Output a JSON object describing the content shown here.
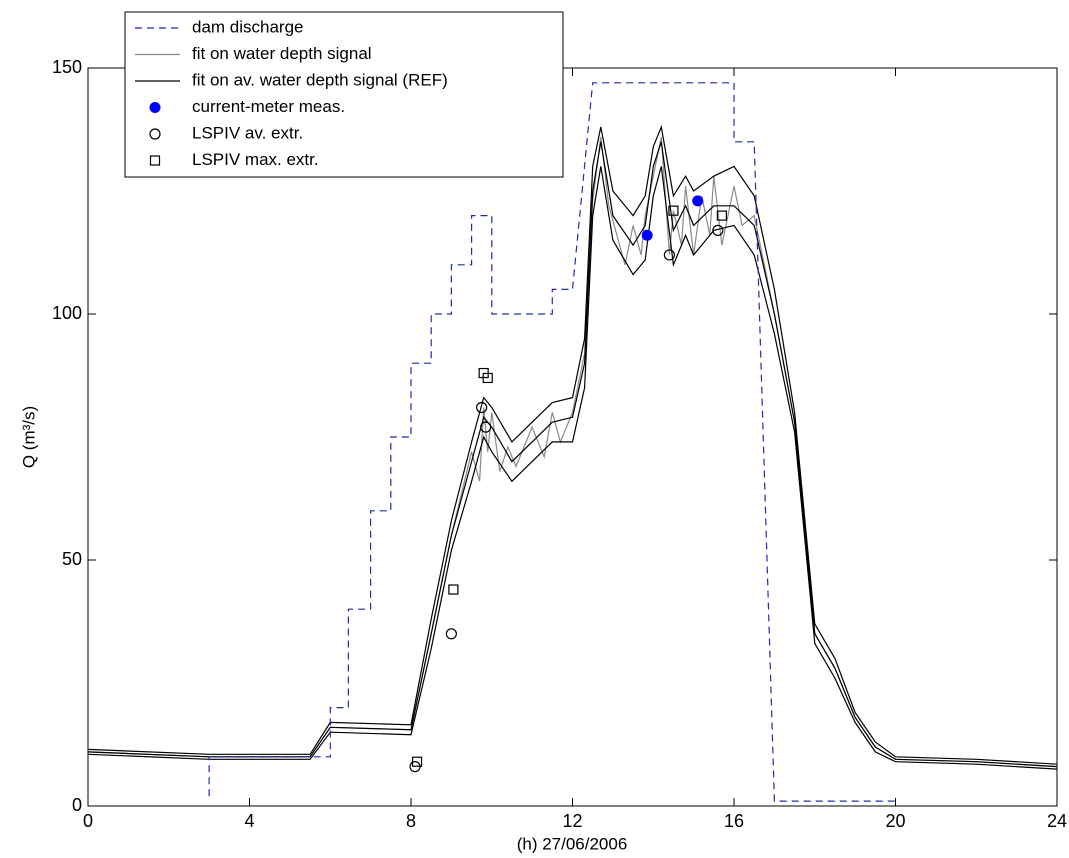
{
  "chart_data": {
    "type": "line",
    "x_label": "(h)  27/06/2006",
    "y_label": "Q (m³/s)",
    "xlim": [
      0,
      24
    ],
    "xticks": [
      0,
      4,
      8,
      12,
      16,
      20,
      24
    ],
    "ylim": [
      0,
      150
    ],
    "yticks": [
      0,
      50,
      100,
      150
    ],
    "legend": "upper left",
    "series": [
      {
        "name": "dam discharge",
        "color": "#1f2fa8",
        "style": "dashed",
        "x": [
          3,
          3,
          6,
          6,
          6.45,
          6.45,
          7,
          7,
          7.5,
          7.5,
          8,
          8,
          8.5,
          8.5,
          9,
          9,
          9.5,
          9.5,
          10,
          10,
          11.5,
          11.5,
          12,
          12.5,
          16,
          16,
          16.5,
          17,
          20
        ],
        "values": [
          2,
          10,
          10,
          20,
          20,
          40,
          40,
          60,
          60,
          75,
          75,
          90,
          90,
          100,
          100,
          110,
          110,
          120,
          120,
          100,
          100,
          105,
          105,
          147,
          147,
          135,
          135,
          1,
          1
        ]
      },
      {
        "name": "fit on water depth signal",
        "color": "#8a8a8a",
        "style": "solid",
        "x": [
          0,
          3,
          5.5,
          6,
          8,
          8.5,
          9,
          9.5,
          9.7,
          9.8,
          9.9,
          10,
          10.2,
          10.4,
          10.6,
          11,
          11.3,
          11.5,
          11.7,
          12,
          12.3,
          12.5,
          12.7,
          12.9,
          13,
          13.3,
          13.5,
          13.7,
          13.8,
          14,
          14.2,
          14.4,
          14.5,
          14.7,
          14.8,
          15,
          15.2,
          15.4,
          15.5,
          15.7,
          16,
          16.2,
          16.5,
          17,
          17.5,
          18,
          18.5,
          19,
          19.5,
          20,
          22,
          24
        ],
        "values": [
          11,
          10,
          10,
          16,
          15.5,
          35,
          55,
          72,
          66,
          81,
          72,
          80,
          68,
          73,
          69,
          77,
          71,
          80,
          74,
          80,
          92,
          123,
          136,
          122,
          119,
          110,
          118,
          112,
          120,
          128,
          136,
          112,
          121,
          114,
          126,
          112,
          124,
          116,
          128,
          114,
          126,
          118,
          120,
          100,
          78,
          35,
          28,
          18,
          12,
          9.5,
          9,
          8
        ]
      },
      {
        "name": "fit on av. water depth signal (REF)",
        "color": "#000000",
        "style": "solid",
        "x": [
          0,
          3,
          5.5,
          6,
          8,
          8.5,
          9,
          9.5,
          9.8,
          10,
          10.5,
          11,
          11.5,
          12,
          12.3,
          12.5,
          12.7,
          13,
          13.5,
          13.8,
          14,
          14.2,
          14.5,
          14.8,
          15,
          15.5,
          16,
          16.5,
          17,
          17.5,
          18,
          18.5,
          19,
          19.5,
          20,
          22,
          24
        ],
        "values": [
          11,
          10,
          10,
          16,
          15.5,
          35,
          55,
          70,
          79,
          77,
          70,
          74,
          78,
          79,
          90,
          125,
          135,
          120,
          114,
          118,
          130,
          135,
          117,
          122,
          118,
          122,
          122,
          118,
          100,
          78,
          35,
          28,
          18,
          12,
          9.5,
          9,
          8
        ]
      },
      {
        "color": "#000000",
        "style": "solid",
        "x": [
          0,
          3,
          5.5,
          6,
          8,
          8.5,
          9,
          9.5,
          9.8,
          10,
          10.5,
          11,
          11.5,
          12,
          12.3,
          12.5,
          12.7,
          13,
          13.5,
          13.8,
          14,
          14.2,
          14.5,
          14.8,
          15,
          15.5,
          16,
          16.5,
          17,
          17.5,
          18,
          18.5,
          19,
          19.5,
          20,
          22,
          24
        ],
        "values": [
          11.5,
          10.5,
          10.5,
          17,
          16.5,
          38,
          58,
          74,
          83,
          81,
          74,
          78,
          82,
          83,
          95,
          130,
          138,
          125,
          120,
          124,
          134,
          138,
          124,
          128,
          125,
          128,
          130,
          124,
          105,
          80,
          37,
          30,
          19,
          13,
          10,
          9.5,
          8.5
        ]
      },
      {
        "color": "#000000",
        "style": "solid",
        "x": [
          0,
          3,
          5.5,
          6,
          8,
          8.5,
          9,
          9.5,
          9.8,
          10,
          10.5,
          11,
          11.5,
          12,
          12.3,
          12.5,
          12.7,
          13,
          13.5,
          13.8,
          14,
          14.2,
          14.5,
          14.8,
          15,
          15.5,
          16,
          16.5,
          17,
          17.5,
          18,
          18.5,
          19,
          19.5,
          20,
          22,
          24
        ],
        "values": [
          10.5,
          9.5,
          9.5,
          15,
          14.5,
          32,
          52,
          66,
          75,
          72,
          66,
          70,
          74,
          74,
          85,
          120,
          130,
          115,
          108,
          111,
          124,
          130,
          110,
          116,
          112,
          117,
          118,
          112,
          96,
          76,
          33,
          26,
          17,
          11,
          9,
          8.5,
          7.5
        ]
      },
      {
        "name": "current-meter meas.",
        "color": "#0000ff",
        "marker": "filled-circle",
        "x": [
          13.85,
          15.1
        ],
        "values": [
          116,
          123
        ]
      },
      {
        "name": "LSPIV av. extr.",
        "color": "#000000",
        "marker": "circle",
        "x": [
          8.1,
          9,
          9.75,
          9.85,
          14.4,
          15.6
        ],
        "values": [
          8,
          35,
          81,
          77,
          112,
          117
        ]
      },
      {
        "name": "LSPIV max. extr.",
        "color": "#000000",
        "marker": "square",
        "x": [
          8.15,
          9.05,
          9.8,
          9.9,
          14.5,
          15.7
        ],
        "values": [
          9,
          44,
          88,
          87,
          121,
          120
        ]
      }
    ]
  }
}
